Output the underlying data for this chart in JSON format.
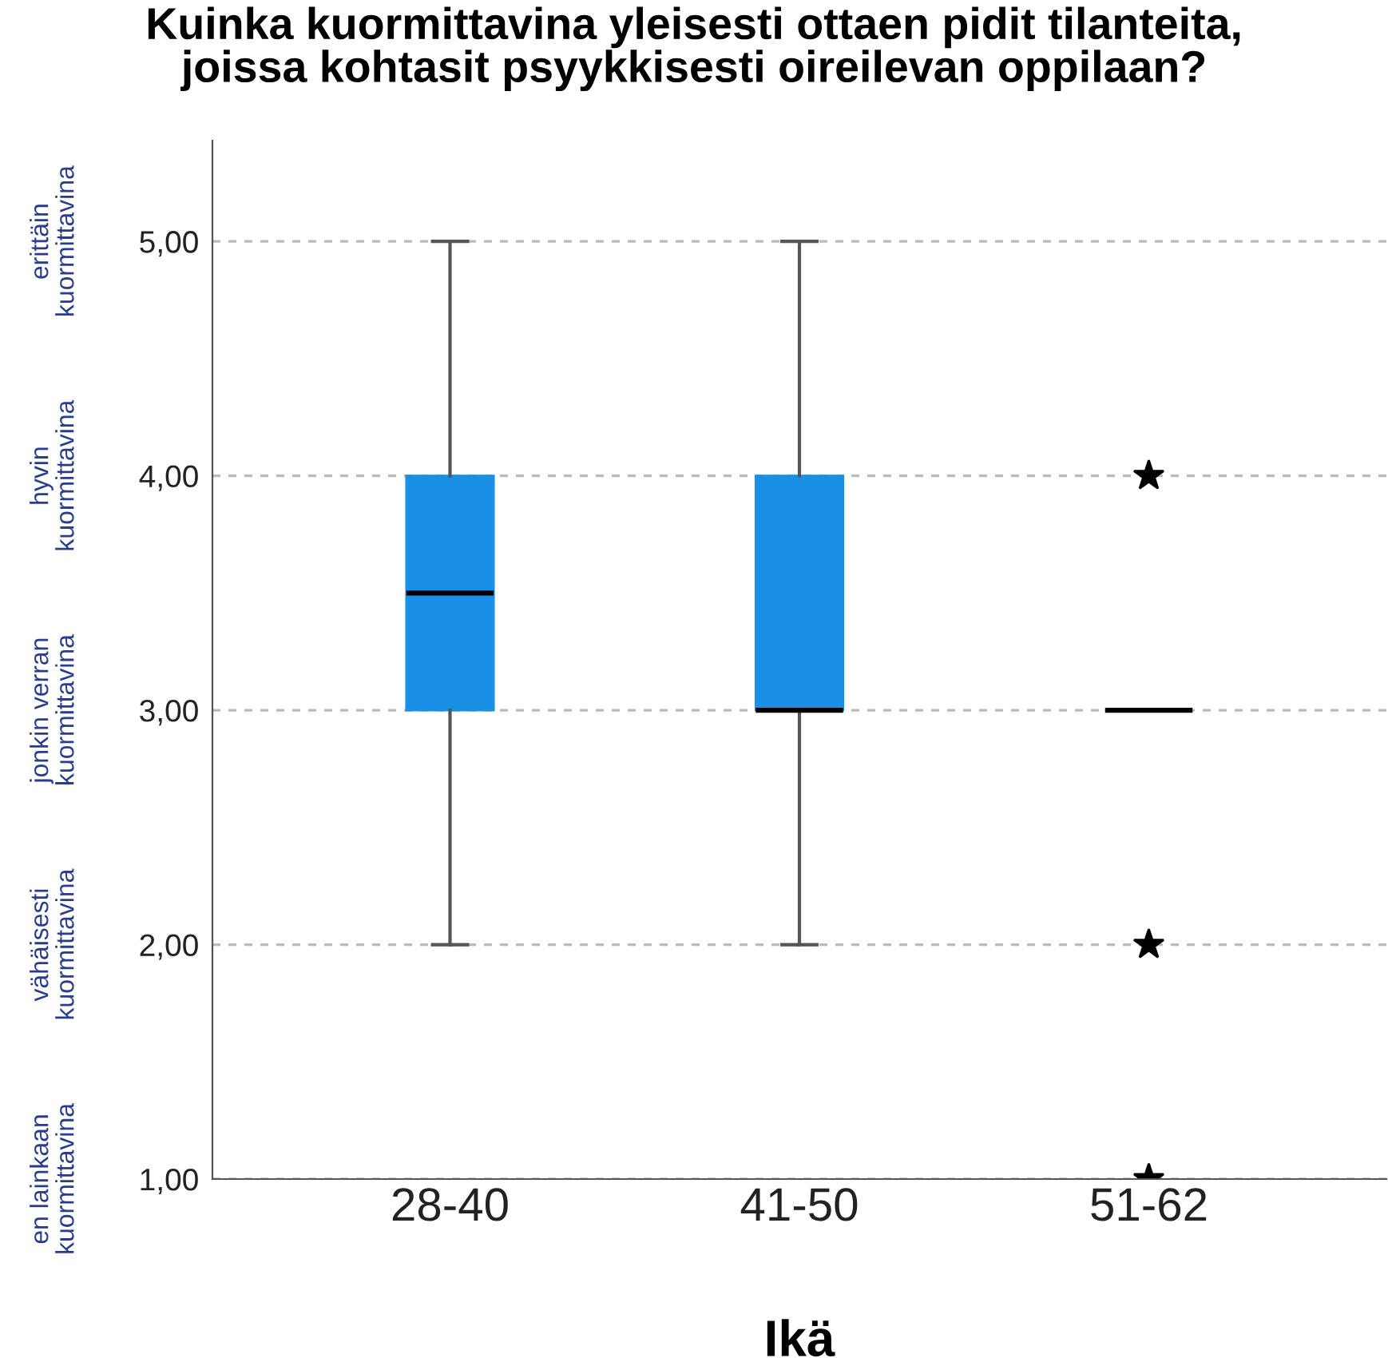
{
  "chart_data": {
    "type": "box",
    "title": "Kuinka kuormittavina yleisesti ottaen pidit tilanteita,\njoissa kohtasit psyykkisesti oireilevan oppilaan?",
    "xlabel": "Ikä",
    "categories": [
      "28-40",
      "41-50",
      "51-62"
    ],
    "color": "#1a8fe6",
    "boxes": [
      {
        "low": 2,
        "q1": 3,
        "median": 3.5,
        "q3": 4,
        "high": 5
      },
      {
        "low": 2,
        "q1": 3,
        "median": 3,
        "q3": 4,
        "high": 5
      },
      {
        "low": 3,
        "q1": 3,
        "median": 3,
        "q3": 3,
        "high": 3,
        "outliers": [
          4,
          2,
          1
        ]
      }
    ],
    "marker": "star",
    "ylim": [
      1,
      5.43
    ],
    "yticks": [
      {
        "value": 1,
        "label": "1,00"
      },
      {
        "value": 2,
        "label": "2,00"
      },
      {
        "value": 3,
        "label": "3,00"
      },
      {
        "value": 4,
        "label": "4,00"
      },
      {
        "value": 5,
        "label": "5,00"
      }
    ],
    "annotations": [
      "en lainkaan\nkuormittavina",
      "vähäisesti\nkuormittavina",
      "jonkin verran\nkuormittavina",
      "hyvin\nkuormittavina",
      "erittäin\nkuormittavina"
    ],
    "grid": "y"
  }
}
